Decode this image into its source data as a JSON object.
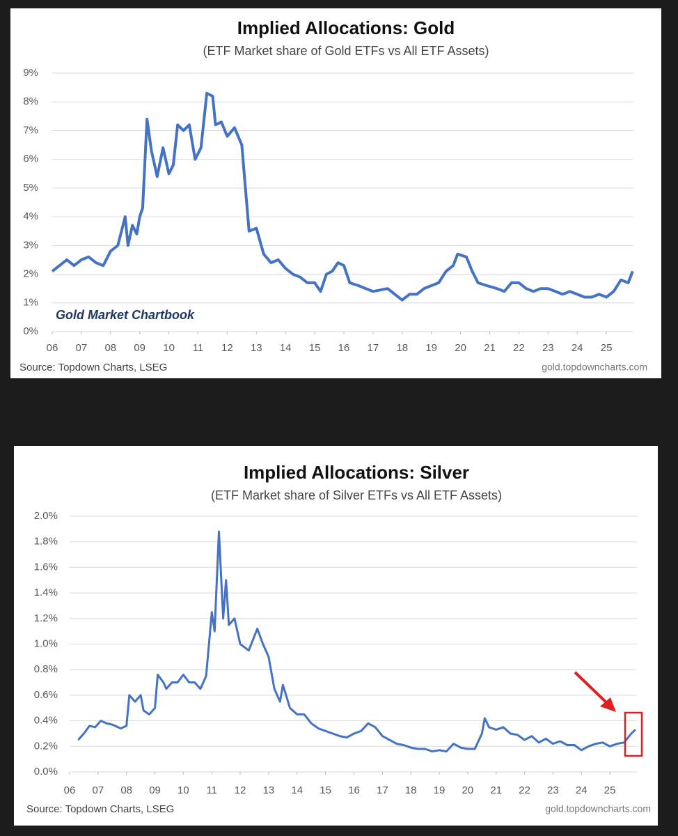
{
  "chart_data": [
    {
      "type": "line",
      "title": "Implied Allocations: Gold",
      "subtitle": "(ETF Market share of Gold ETFs vs All ETF Assets)",
      "annotation": "Gold Market Chartbook",
      "source": "Source: Topdown Charts, LSEG",
      "credit": "gold.topdowncharts.com",
      "color": "#4472c4",
      "grid": true,
      "x": [
        6.0,
        6.25,
        6.5,
        6.75,
        7.0,
        7.25,
        7.5,
        7.75,
        8.0,
        8.25,
        8.5,
        8.6,
        8.75,
        8.9,
        9.0,
        9.1,
        9.25,
        9.4,
        9.6,
        9.8,
        10.0,
        10.15,
        10.3,
        10.5,
        10.7,
        10.9,
        11.1,
        11.3,
        11.5,
        11.6,
        11.8,
        12.0,
        12.25,
        12.5,
        12.6,
        12.75,
        13.0,
        13.25,
        13.5,
        13.75,
        14.0,
        14.25,
        14.5,
        14.75,
        15.0,
        15.2,
        15.4,
        15.6,
        15.8,
        16.0,
        16.2,
        16.5,
        16.75,
        17.0,
        17.5,
        17.75,
        18.0,
        18.25,
        18.5,
        18.75,
        19.0,
        19.25,
        19.5,
        19.75,
        19.9,
        20.2,
        20.4,
        20.6,
        20.9,
        21.25,
        21.5,
        21.75,
        22.0,
        22.25,
        22.5,
        22.75,
        23.0,
        23.25,
        23.5,
        23.75,
        24.0,
        24.25,
        24.5,
        24.75,
        25.0,
        25.25,
        25.5,
        25.75,
        25.9
      ],
      "values": [
        2.1,
        2.3,
        2.5,
        2.3,
        2.5,
        2.6,
        2.4,
        2.3,
        2.8,
        3.0,
        4.0,
        3.0,
        3.7,
        3.4,
        4.0,
        4.3,
        7.4,
        6.3,
        5.4,
        6.4,
        5.5,
        5.8,
        7.2,
        7.0,
        7.2,
        6.0,
        6.4,
        8.3,
        8.2,
        7.2,
        7.3,
        6.8,
        7.1,
        6.5,
        5.3,
        3.5,
        3.6,
        2.7,
        2.4,
        2.5,
        2.2,
        2.0,
        1.9,
        1.7,
        1.7,
        1.4,
        2.0,
        2.1,
        2.4,
        2.3,
        1.7,
        1.6,
        1.5,
        1.4,
        1.5,
        1.3,
        1.1,
        1.3,
        1.3,
        1.5,
        1.6,
        1.7,
        2.1,
        2.3,
        2.7,
        2.6,
        2.1,
        1.7,
        1.6,
        1.5,
        1.4,
        1.7,
        1.7,
        1.5,
        1.4,
        1.5,
        1.5,
        1.4,
        1.3,
        1.4,
        1.3,
        1.2,
        1.2,
        1.3,
        1.2,
        1.4,
        1.8,
        1.7,
        2.1
      ],
      "xlim": [
        6,
        26
      ],
      "xticks": [
        {
          "value": 6,
          "label": "06"
        },
        {
          "value": 7,
          "label": "07"
        },
        {
          "value": 8,
          "label": "08"
        },
        {
          "value": 9,
          "label": "09"
        },
        10,
        11,
        12,
        13,
        14,
        15,
        16,
        17,
        18,
        19,
        20,
        21,
        22,
        23,
        24,
        25
      ],
      "ylim": [
        0,
        9
      ],
      "yticks": [
        {
          "value": 0,
          "label": "0%"
        },
        {
          "value": 1,
          "label": "1%"
        },
        {
          "value": 2,
          "label": "2%"
        },
        {
          "value": 3,
          "label": "3%"
        },
        {
          "value": 4,
          "label": "4%"
        },
        {
          "value": 5,
          "label": "5%"
        },
        {
          "value": 6,
          "label": "6%"
        },
        {
          "value": 7,
          "label": "7%"
        },
        {
          "value": 8,
          "label": "8%"
        },
        {
          "value": 9,
          "label": "9%"
        }
      ]
    },
    {
      "type": "line",
      "title": "Implied Allocations: Silver",
      "subtitle": "(ETF Market share of Silver ETFs vs All ETF Assets)",
      "source": "Source: Topdown Charts, LSEG",
      "credit": "gold.topdowncharts.com",
      "color": "#4472c4",
      "grid": true,
      "x": [
        6.3,
        6.5,
        6.7,
        6.9,
        7.1,
        7.3,
        7.5,
        7.8,
        8.0,
        8.1,
        8.3,
        8.5,
        8.6,
        8.8,
        9.0,
        9.1,
        9.3,
        9.4,
        9.6,
        9.8,
        10.0,
        10.2,
        10.4,
        10.6,
        10.8,
        11.0,
        11.1,
        11.25,
        11.4,
        11.5,
        11.6,
        11.8,
        12.0,
        12.3,
        12.6,
        12.8,
        13.0,
        13.2,
        13.4,
        13.5,
        13.75,
        14.0,
        14.25,
        14.5,
        14.75,
        15.0,
        15.25,
        15.5,
        15.75,
        16.0,
        16.25,
        16.5,
        16.75,
        17.0,
        17.25,
        17.5,
        17.75,
        18.0,
        18.25,
        18.5,
        18.75,
        19.0,
        19.25,
        19.5,
        19.75,
        20.0,
        20.25,
        20.5,
        20.6,
        20.75,
        21.0,
        21.25,
        21.5,
        21.75,
        22.0,
        22.25,
        22.5,
        22.75,
        23.0,
        23.25,
        23.5,
        23.75,
        24.0,
        24.25,
        24.5,
        24.75,
        25.0,
        25.25,
        25.5,
        25.75,
        25.9
      ],
      "values": [
        0.25,
        0.3,
        0.36,
        0.35,
        0.4,
        0.38,
        0.37,
        0.34,
        0.36,
        0.6,
        0.55,
        0.6,
        0.48,
        0.45,
        0.5,
        0.76,
        0.7,
        0.65,
        0.7,
        0.7,
        0.76,
        0.7,
        0.7,
        0.65,
        0.75,
        1.25,
        1.1,
        1.88,
        1.2,
        1.5,
        1.15,
        1.2,
        1.0,
        0.95,
        1.12,
        1.0,
        0.9,
        0.65,
        0.55,
        0.68,
        0.5,
        0.45,
        0.45,
        0.38,
        0.34,
        0.32,
        0.3,
        0.28,
        0.27,
        0.3,
        0.32,
        0.38,
        0.35,
        0.28,
        0.25,
        0.22,
        0.21,
        0.19,
        0.18,
        0.18,
        0.16,
        0.17,
        0.16,
        0.22,
        0.19,
        0.18,
        0.18,
        0.3,
        0.42,
        0.35,
        0.33,
        0.35,
        0.3,
        0.29,
        0.25,
        0.28,
        0.23,
        0.26,
        0.22,
        0.24,
        0.21,
        0.21,
        0.17,
        0.2,
        0.22,
        0.23,
        0.2,
        0.22,
        0.23,
        0.3,
        0.33
      ],
      "xlim": [
        6,
        26
      ],
      "xticks": [
        {
          "value": 6,
          "label": "06"
        },
        {
          "value": 7,
          "label": "07"
        },
        {
          "value": 8,
          "label": "08"
        },
        {
          "value": 9,
          "label": "09"
        },
        10,
        11,
        12,
        13,
        14,
        15,
        16,
        17,
        18,
        19,
        20,
        21,
        22,
        23,
        24,
        25
      ],
      "ylim": [
        0,
        2
      ],
      "yticks": [
        {
          "value": 0,
          "label": "0.0%"
        },
        {
          "value": 0.2,
          "label": "0.2%"
        },
        {
          "value": 0.4,
          "label": "0.4%"
        },
        {
          "value": 0.6,
          "label": "0.6%"
        },
        {
          "value": 0.8,
          "label": "0.8%"
        },
        {
          "value": 1.0,
          "label": "1.0%"
        },
        {
          "value": 1.2,
          "label": "1.2%"
        },
        {
          "value": 1.4,
          "label": "1.4%"
        },
        {
          "value": 1.6,
          "label": "1.6%"
        },
        {
          "value": 1.8,
          "label": "1.8%"
        },
        {
          "value": 2.0,
          "label": "2.0%"
        }
      ]
    }
  ]
}
